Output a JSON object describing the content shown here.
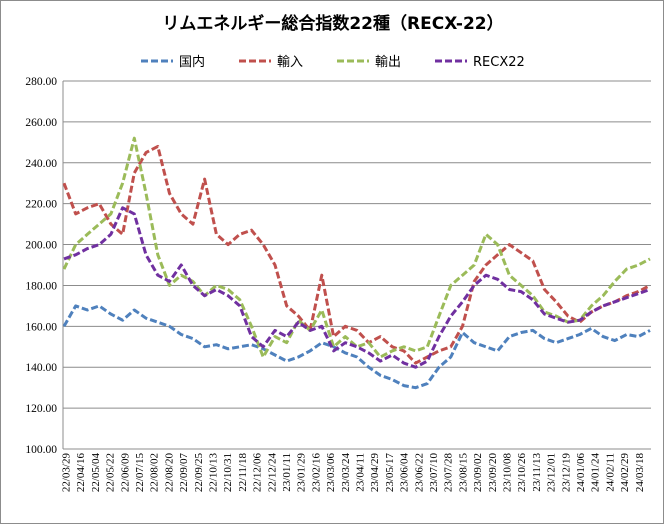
{
  "chart_data": {
    "type": "line",
    "title": "リムエネルギー総合指数22種（RECX-22）",
    "xlabel": "",
    "ylabel": "",
    "ylim": [
      100,
      280
    ],
    "yticks": [
      "100.00",
      "120.00",
      "140.00",
      "160.00",
      "180.00",
      "200.00",
      "220.00",
      "240.00",
      "260.00",
      "280.00"
    ],
    "grid": "horizontal",
    "legend_position": "top",
    "x_tick_labels": [
      "22/03/29",
      "22/04/16",
      "22/05/04",
      "22/05/22",
      "22/06/09",
      "22/07/15",
      "22/08/02",
      "22/08/20",
      "22/09/07",
      "22/09/25",
      "22/10/13",
      "22/10/31",
      "22/11/18",
      "22/12/06",
      "22/12/24",
      "23/01/11",
      "23/01/29",
      "23/02/16",
      "23/03/06",
      "23/03/24",
      "23/04/11",
      "23/04/29",
      "23/05/17",
      "23/06/04",
      "23/06/22",
      "23/07/10",
      "23/07/28",
      "23/08/15",
      "23/09/02",
      "23/09/20",
      "23/10/08",
      "23/10/26",
      "23/11/13",
      "23/12/01",
      "23/12/19",
      "24/01/06",
      "24/01/24",
      "24/02/11",
      "24/02/29",
      "24/03/18"
    ],
    "series": [
      {
        "name": "国内",
        "color": "#4f81bd",
        "values": [
          160,
          170,
          168,
          170,
          166,
          163,
          168,
          164,
          162,
          160,
          156,
          154,
          150,
          151,
          149,
          150,
          151,
          149,
          146,
          143,
          145,
          148,
          152,
          150,
          147,
          145,
          140,
          136,
          134,
          131,
          130,
          132,
          140,
          145,
          157,
          152,
          150,
          148,
          155,
          157,
          158,
          154,
          152,
          154,
          156,
          159,
          155,
          153,
          156,
          155,
          158
        ]
      },
      {
        "name": "輸入",
        "color": "#c0504d",
        "values": [
          230,
          215,
          218,
          220,
          210,
          205,
          235,
          245,
          248,
          225,
          215,
          210,
          232,
          205,
          200,
          205,
          207,
          200,
          190,
          170,
          165,
          158,
          185,
          155,
          160,
          158,
          152,
          155,
          150,
          148,
          142,
          145,
          148,
          150,
          160,
          182,
          190,
          195,
          200,
          196,
          192,
          178,
          172,
          165,
          162,
          167,
          170,
          172,
          175,
          177,
          180
        ]
      },
      {
        "name": "輸出",
        "color": "#9bbb59",
        "values": [
          188,
          200,
          205,
          210,
          215,
          230,
          252,
          225,
          195,
          180,
          185,
          182,
          175,
          180,
          178,
          173,
          160,
          145,
          155,
          152,
          163,
          158,
          168,
          150,
          155,
          150,
          152,
          145,
          148,
          150,
          148,
          150,
          165,
          180,
          185,
          190,
          205,
          200,
          185,
          180,
          175,
          167,
          165,
          162,
          163,
          170,
          175,
          182,
          188,
          190,
          193
        ]
      },
      {
        "name": "RECX22",
        "color": "#7030a0",
        "values": [
          193,
          195,
          198,
          200,
          205,
          218,
          215,
          195,
          185,
          182,
          190,
          180,
          175,
          178,
          175,
          170,
          155,
          150,
          158,
          155,
          162,
          158,
          160,
          148,
          152,
          150,
          147,
          143,
          146,
          142,
          140,
          143,
          155,
          165,
          172,
          180,
          185,
          183,
          178,
          177,
          173,
          166,
          164,
          162,
          163,
          167,
          170,
          172,
          174,
          176,
          178
        ]
      }
    ]
  }
}
